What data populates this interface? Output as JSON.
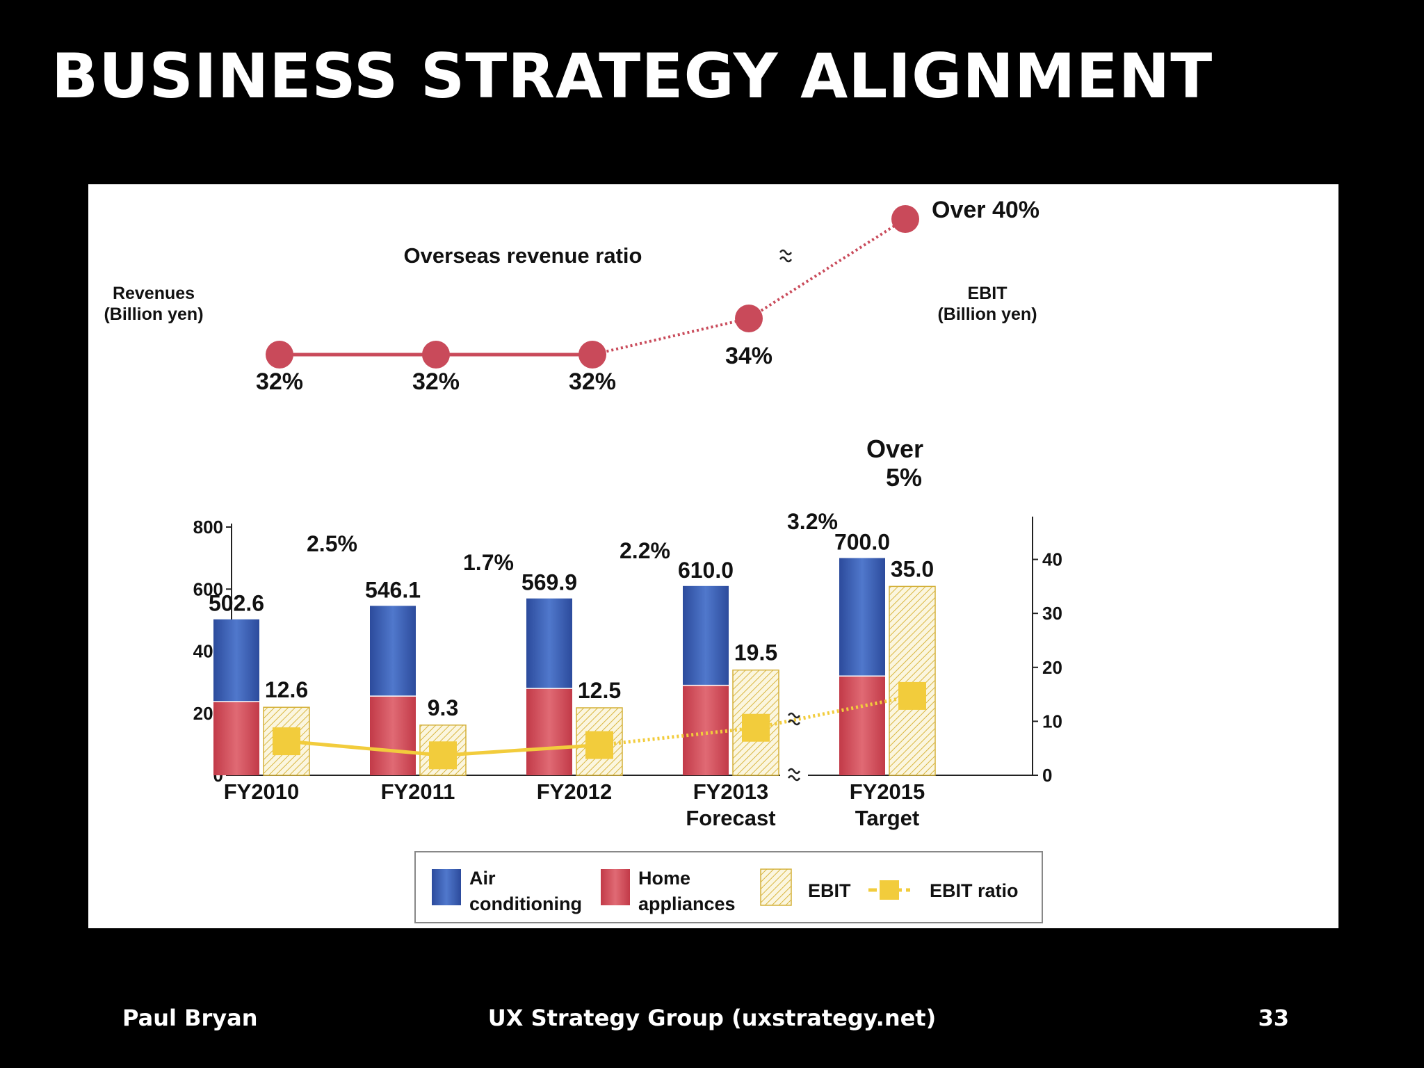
{
  "slide": {
    "title": "BUSINESS STRATEGY ALIGNMENT",
    "footer_left": "Paul Bryan",
    "footer_center": "UX Strategy Group (uxstrategy.net)",
    "footer_right": "33"
  },
  "chart_data": {
    "type": "bar",
    "categories": [
      [
        "FY2010"
      ],
      [
        "FY2011"
      ],
      [
        "FY2012"
      ],
      [
        "FY2013",
        "Forecast"
      ],
      [
        "FY2015",
        "Target"
      ]
    ],
    "left_axis": {
      "title": [
        "Revenues",
        "(Billion yen)"
      ],
      "ticks": [
        0,
        200,
        400,
        600,
        800
      ],
      "ylim": [
        0,
        800
      ]
    },
    "right_axis": {
      "title": [
        "EBIT",
        "(Billion yen)"
      ],
      "ticks": [
        0,
        10,
        20,
        30,
        40
      ],
      "ylim": [
        0,
        46
      ]
    },
    "revenues": {
      "total_labels": [
        "502.6",
        "546.1",
        "569.9",
        "610.0",
        "700.0"
      ],
      "series": [
        {
          "name": "Air conditioning",
          "color": "#3c5fb0",
          "values": [
            265.0,
            291.0,
            290.0,
            320.0,
            380.0
          ]
        },
        {
          "name": "Home appliances",
          "color": "#cf4c57",
          "values": [
            237.6,
            255.1,
            279.9,
            290.0,
            320.0
          ]
        }
      ]
    },
    "ebit": {
      "name": "EBIT",
      "color": "#e6c04a",
      "values": [
        12.6,
        9.3,
        12.5,
        19.5,
        35.0
      ],
      "labels": [
        "12.6",
        "9.3",
        "12.5",
        "19.5",
        "35.0"
      ]
    },
    "ebit_ratio": {
      "name": "EBIT ratio",
      "color": "#f2cc3c",
      "values": [
        6.3,
        3.7,
        5.6,
        8.8,
        14.7
      ],
      "labels": [
        "2.5%",
        "1.7%",
        "2.2%",
        "3.2%",
        "Over 5%"
      ]
    },
    "overseas_ratio": {
      "title": "Overseas revenue ratio",
      "color": "#c94a5a",
      "labels": [
        "32%",
        "32%",
        "32%",
        "34%",
        "Over 40%"
      ]
    },
    "legend": [
      "Air conditioning",
      "Home appliances",
      "EBIT",
      "EBIT ratio"
    ],
    "legend_placement": "bottom-center",
    "grid": false
  }
}
